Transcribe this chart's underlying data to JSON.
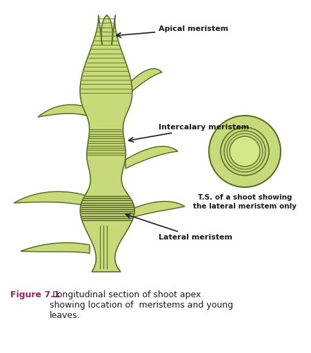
{
  "bg_color": "#ffffff",
  "stem_color": "#c8d97a",
  "stem_color2": "#b8cc65",
  "stem_outline": "#5a6e28",
  "stripe_color": "#6a7c2a",
  "label_color": "#1a1a1a",
  "figure_label_color": "#9b2257",
  "arrow_color": "#1a1a1a",
  "labels": {
    "apical": "Apical meristem",
    "intercalary": "Intercalary meristem",
    "lateral": "Lateral meristem",
    "ts_label_line1": "T.S. of a shoot showing",
    "ts_label_line2": "the lateral meristem only"
  },
  "caption_bold": "Figure 7.1",
  "caption_rest": " Longitudinal section of shoot apex\nshowing location of  meristems and young\nleaves."
}
